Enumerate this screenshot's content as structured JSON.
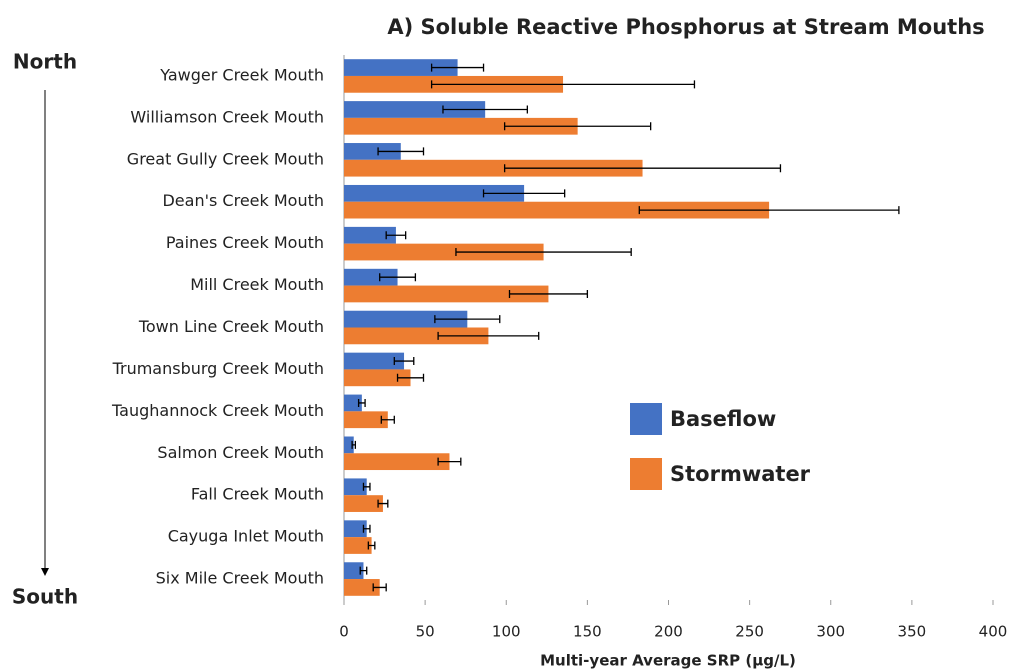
{
  "chart_data": {
    "type": "hbar",
    "title": "A) Soluble Reactive Phosphorus at Stream Mouths",
    "x_label": "Multi-year Average SRP (µg/L)",
    "annotations": [
      "North",
      "South"
    ],
    "categories": [
      "Yawger Creek Mouth",
      "Williamson Creek Mouth",
      "Great Gully Creek Mouth",
      "Dean's Creek Mouth",
      "Paines Creek Mouth",
      "Mill Creek Mouth",
      "Town Line Creek Mouth",
      "Trumansburg Creek Mouth",
      "Taughannock Creek Mouth",
      "Salmon Creek Mouth",
      "Fall Creek Mouth",
      "Cayuga Inlet Mouth",
      "Six Mile Creek Mouth"
    ],
    "series": [
      {
        "name": "Baseflow",
        "color": "#4472c4",
        "values": [
          70,
          87,
          35,
          111,
          32,
          33,
          76,
          37,
          11,
          6,
          14,
          14,
          12
        ],
        "errors": [
          16,
          26,
          14,
          25,
          6,
          11,
          20,
          6,
          2,
          1,
          2,
          2,
          2
        ]
      },
      {
        "name": "Stormwater",
        "color": "#ed7d31",
        "values": [
          135,
          144,
          184,
          262,
          123,
          126,
          89,
          41,
          27,
          65,
          24,
          17,
          22
        ],
        "errors": [
          81,
          45,
          85,
          80,
          54,
          24,
          31,
          8,
          4,
          7,
          3,
          2,
          4
        ]
      }
    ],
    "xlim": [
      0,
      400
    ],
    "xticks": [
      0,
      50,
      100,
      150,
      200,
      250,
      300,
      350,
      400
    ],
    "grid": false,
    "legend": "right"
  }
}
